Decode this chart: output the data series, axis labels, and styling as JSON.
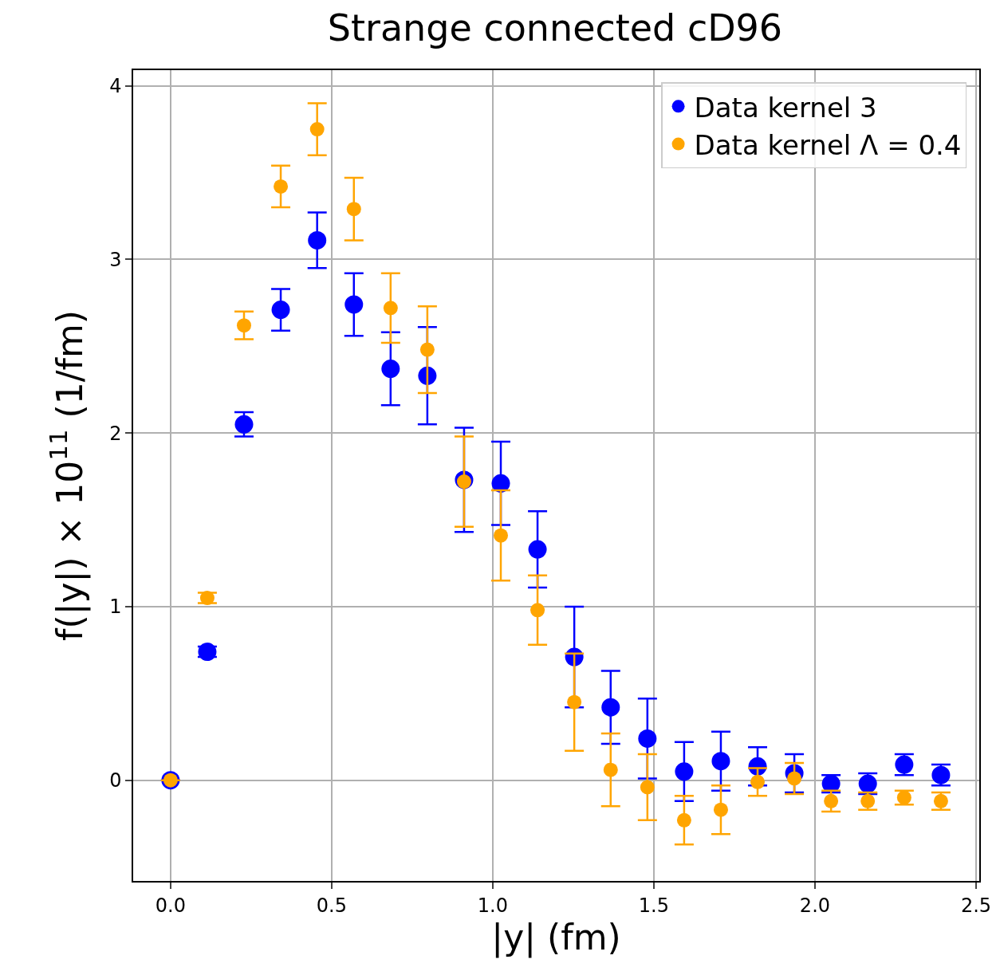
{
  "chart_data": {
    "type": "scatter",
    "title": "Strange connected cD96",
    "xlabel": "|y| (fm)",
    "ylabel": "f(|y|) × 10$^{11}$ (1/fm)",
    "x": [
      0,
      0.114,
      0.228,
      0.342,
      0.455,
      0.569,
      0.683,
      0.797,
      0.911,
      1.025,
      1.139,
      1.253,
      1.366,
      1.48,
      1.594,
      1.708,
      1.822,
      1.936,
      2.05,
      2.164,
      2.277,
      2.391
    ],
    "series": [
      {
        "name": "Data kernel 3",
        "color": "#0000ff",
        "values": [
          0,
          0.74,
          2.05,
          2.71,
          3.11,
          2.74,
          2.37,
          2.33,
          1.73,
          1.71,
          1.33,
          0.71,
          0.42,
          0.24,
          0.05,
          0.11,
          0.08,
          0.04,
          -0.02,
          -0.02,
          0.09,
          0.03
        ],
        "errors": [
          0,
          0.03,
          0.07,
          0.12,
          0.16,
          0.18,
          0.21,
          0.28,
          0.3,
          0.24,
          0.22,
          0.29,
          0.21,
          0.23,
          0.17,
          0.17,
          0.11,
          0.11,
          0.05,
          0.06,
          0.06,
          0.06
        ]
      },
      {
        "name": "Data kernel Λ = 0.4",
        "color": "#ffa500",
        "values": [
          0,
          1.05,
          2.62,
          3.42,
          3.75,
          3.29,
          2.72,
          2.48,
          1.72,
          1.41,
          0.98,
          0.45,
          0.06,
          -0.04,
          -0.23,
          -0.17,
          -0.01,
          0.01,
          -0.12,
          -0.12,
          -0.1,
          -0.12
        ],
        "errors": [
          0,
          0.03,
          0.08,
          0.12,
          0.15,
          0.18,
          0.2,
          0.25,
          0.26,
          0.26,
          0.2,
          0.28,
          0.21,
          0.19,
          0.14,
          0.14,
          0.08,
          0.09,
          0.06,
          0.05,
          0.04,
          0.05
        ]
      }
    ],
    "xlim": [
      -0.116,
      2.51
    ],
    "ylim": [
      -0.58,
      4.09
    ],
    "xticks": [
      {
        "value": 0,
        "label": "0.0"
      },
      0.5,
      {
        "value": 1,
        "label": "1.0"
      },
      1.5,
      {
        "value": 2,
        "label": "2.0"
      },
      2.5
    ],
    "yticks": [
      0,
      1,
      2,
      3,
      4
    ],
    "grid": true,
    "legend": "top right",
    "marker": "circle"
  }
}
